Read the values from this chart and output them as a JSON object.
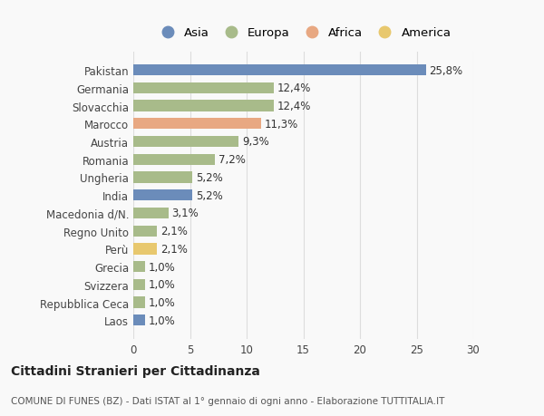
{
  "categories": [
    "Pakistan",
    "Germania",
    "Slovacchia",
    "Marocco",
    "Austria",
    "Romania",
    "Ungheria",
    "India",
    "Macedonia d/N.",
    "Regno Unito",
    "Perù",
    "Grecia",
    "Svizzera",
    "Repubblica Ceca",
    "Laos"
  ],
  "values": [
    25.8,
    12.4,
    12.4,
    11.3,
    9.3,
    7.2,
    5.2,
    5.2,
    3.1,
    2.1,
    2.1,
    1.0,
    1.0,
    1.0,
    1.0
  ],
  "labels": [
    "25,8%",
    "12,4%",
    "12,4%",
    "11,3%",
    "9,3%",
    "7,2%",
    "5,2%",
    "5,2%",
    "3,1%",
    "2,1%",
    "2,1%",
    "1,0%",
    "1,0%",
    "1,0%",
    "1,0%"
  ],
  "colors": [
    "#6b8cba",
    "#a8bb8a",
    "#a8bb8a",
    "#e8a882",
    "#a8bb8a",
    "#a8bb8a",
    "#a8bb8a",
    "#6b8cba",
    "#a8bb8a",
    "#a8bb8a",
    "#e8c86e",
    "#a8bb8a",
    "#a8bb8a",
    "#a8bb8a",
    "#6b8cba"
  ],
  "legend": [
    {
      "label": "Asia",
      "color": "#6b8cba"
    },
    {
      "label": "Europa",
      "color": "#a8bb8a"
    },
    {
      "label": "Africa",
      "color": "#e8a882"
    },
    {
      "label": "America",
      "color": "#e8c86e"
    }
  ],
  "xlim": [
    0,
    30
  ],
  "xticks": [
    0,
    5,
    10,
    15,
    20,
    25,
    30
  ],
  "title": "Cittadini Stranieri per Cittadinanza",
  "subtitle": "COMUNE DI FUNES (BZ) - Dati ISTAT al 1° gennaio di ogni anno - Elaborazione TUTTITALIA.IT",
  "bg_color": "#f9f9f9",
  "grid_color": "#dddddd",
  "bar_height": 0.62,
  "label_fontsize": 8.5,
  "ytick_fontsize": 8.5,
  "xtick_fontsize": 8.5,
  "title_fontsize": 10,
  "subtitle_fontsize": 7.5,
  "legend_fontsize": 9.5,
  "value_label_color": "#333333"
}
